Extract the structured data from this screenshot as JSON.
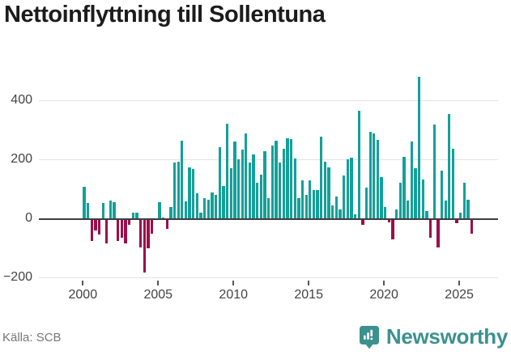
{
  "title": "Nettoinflyttning till Sollentuna",
  "source": "Källa: SCB",
  "brand": {
    "name": "Newsworthy"
  },
  "colors": {
    "positive": "#14a099",
    "negative": "#9b0e49",
    "zero_line": "#3d3d3d",
    "gridline": "#e3e3e3",
    "logo": "#3b918e"
  },
  "chart_data": {
    "type": "bar",
    "title": "Nettoinflyttning till Sollentuna",
    "xlabel": "",
    "ylabel": "",
    "frequency": "quarterly",
    "start_year": 2000,
    "legend": "none",
    "grid": true,
    "ylim": [
      -230,
      500
    ],
    "y_ticks": [
      400,
      200,
      0,
      -200
    ],
    "y_tick_labels": [
      "400",
      "200",
      "0",
      "−200"
    ],
    "x_ticks": [
      2000,
      2005,
      2010,
      2015,
      2020,
      2025
    ],
    "categories": [
      "2000-Q1",
      "2000-Q2",
      "2000-Q3",
      "2000-Q4",
      "2001-Q1",
      "2001-Q2",
      "2001-Q3",
      "2001-Q4",
      "2002-Q1",
      "2002-Q2",
      "2002-Q3",
      "2002-Q4",
      "2003-Q1",
      "2003-Q2",
      "2003-Q3",
      "2003-Q4",
      "2004-Q1",
      "2004-Q2",
      "2004-Q3",
      "2004-Q4",
      "2005-Q1",
      "2005-Q2",
      "2005-Q3",
      "2005-Q4",
      "2006-Q1",
      "2006-Q2",
      "2006-Q3",
      "2006-Q4",
      "2007-Q1",
      "2007-Q2",
      "2007-Q3",
      "2007-Q4",
      "2008-Q1",
      "2008-Q2",
      "2008-Q3",
      "2008-Q4",
      "2009-Q1",
      "2009-Q2",
      "2009-Q3",
      "2009-Q4",
      "2010-Q1",
      "2010-Q2",
      "2010-Q3",
      "2010-Q4",
      "2011-Q1",
      "2011-Q2",
      "2011-Q3",
      "2011-Q4",
      "2012-Q1",
      "2012-Q2",
      "2012-Q3",
      "2012-Q4",
      "2013-Q1",
      "2013-Q2",
      "2013-Q3",
      "2013-Q4",
      "2014-Q1",
      "2014-Q2",
      "2014-Q3",
      "2014-Q4",
      "2015-Q1",
      "2015-Q2",
      "2015-Q3",
      "2015-Q4",
      "2016-Q1",
      "2016-Q2",
      "2016-Q3",
      "2016-Q4",
      "2017-Q1",
      "2017-Q2",
      "2017-Q3",
      "2017-Q4",
      "2018-Q1",
      "2018-Q2",
      "2018-Q3",
      "2018-Q4",
      "2019-Q1",
      "2019-Q2",
      "2019-Q3",
      "2019-Q4",
      "2020-Q1",
      "2020-Q2",
      "2020-Q3",
      "2020-Q4",
      "2021-Q1",
      "2021-Q2",
      "2021-Q3",
      "2021-Q4",
      "2022-Q1",
      "2022-Q2",
      "2022-Q3",
      "2022-Q4",
      "2023-Q1",
      "2023-Q2",
      "2023-Q3",
      "2023-Q4",
      "2024-Q1",
      "2024-Q2",
      "2024-Q3",
      "2024-Q4",
      "2025-Q1",
      "2025-Q2",
      "2025-Q3",
      "2025-Q4"
    ],
    "values": [
      109,
      54,
      -74,
      -39,
      -53,
      54,
      -81,
      61,
      57,
      -74,
      -63,
      -81,
      -20,
      21,
      21,
      -96,
      -181,
      -99,
      -48,
      0,
      57,
      3,
      -32,
      41,
      190,
      192,
      265,
      59,
      173,
      169,
      87,
      20,
      70,
      64,
      90,
      82,
      242,
      111,
      321,
      172,
      263,
      201,
      233,
      290,
      190,
      219,
      123,
      148,
      230,
      69,
      247,
      265,
      190,
      237,
      272,
      269,
      203,
      69,
      130,
      80,
      130,
      96,
      96,
      277,
      194,
      174,
      46,
      75,
      32,
      146,
      201,
      207,
      14,
      366,
      -18,
      105,
      294,
      288,
      267,
      142,
      41,
      -10,
      -68,
      32,
      123,
      210,
      61,
      262,
      171,
      480,
      132,
      26,
      -64,
      320,
      -96,
      162,
      61,
      354,
      238,
      -14,
      21,
      123,
      64,
      -50
    ]
  }
}
